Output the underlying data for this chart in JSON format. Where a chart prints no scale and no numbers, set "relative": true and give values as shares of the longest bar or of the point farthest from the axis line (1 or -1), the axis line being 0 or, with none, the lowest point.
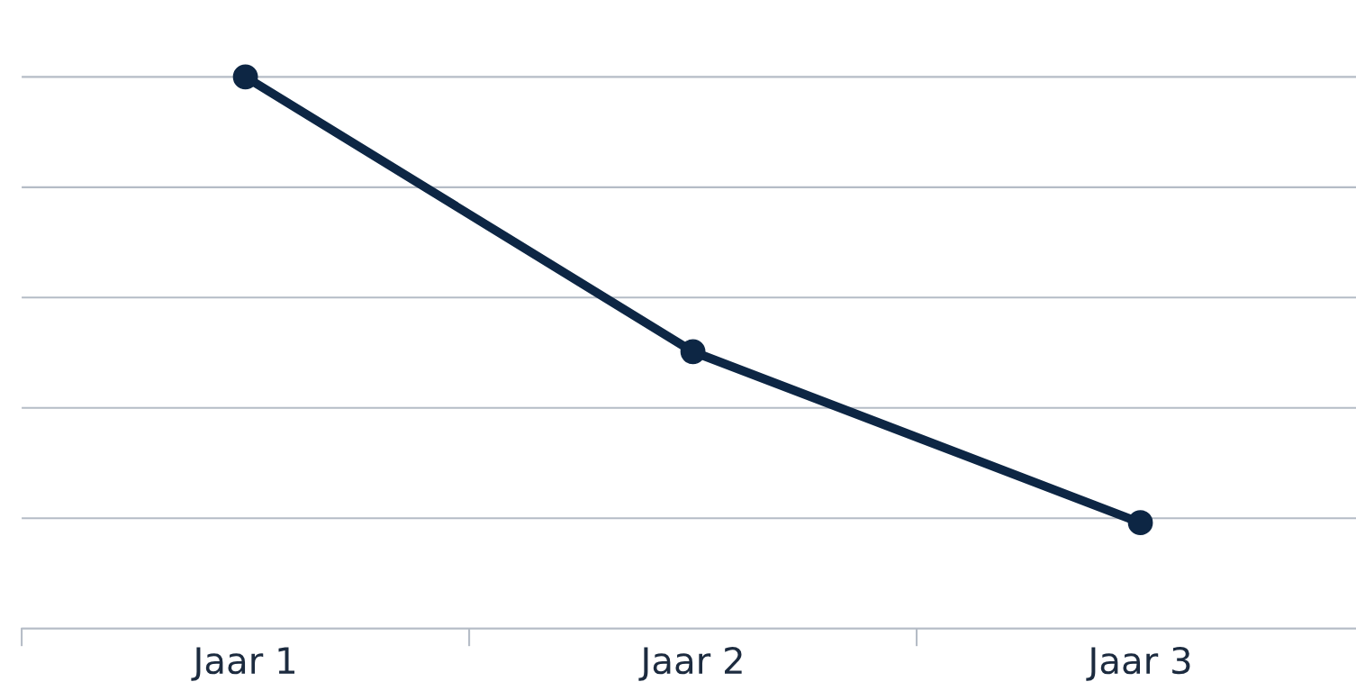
{
  "chart_data": {
    "type": "line",
    "relative": true,
    "categories": [
      "Jaar 1",
      "Jaar 2",
      "Jaar 3"
    ],
    "series": [
      {
        "color": "#0d2644",
        "values": [
          1,
          0.502,
          0.192
        ]
      }
    ],
    "marker": "circle",
    "line_style": "solid",
    "grid": "y",
    "tick_labels": "x",
    "legend": false
  }
}
